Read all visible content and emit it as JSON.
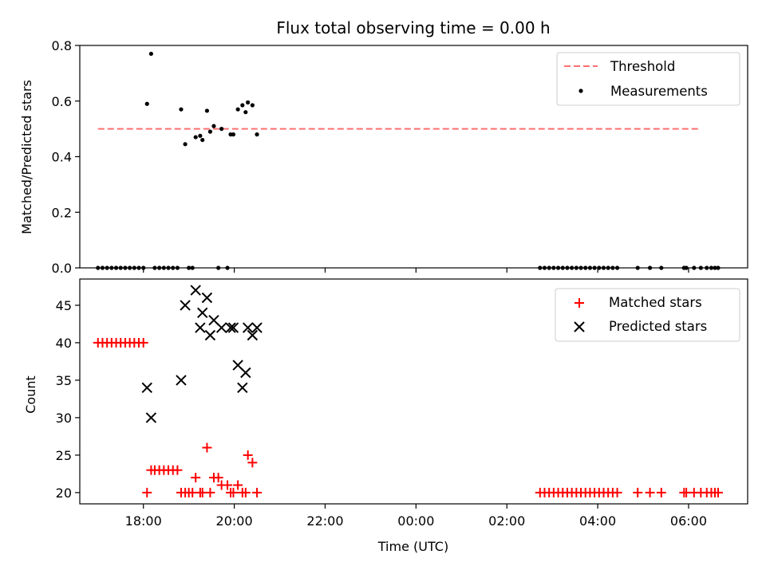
{
  "chart_data": [
    {
      "type": "scatter",
      "title": "Flux total observing time = 0.00 h",
      "ylabel": "Matched/Predicted stars",
      "ylim": [
        0,
        0.8
      ],
      "xlim": [
        16.6,
        31.3
      ],
      "yticks": [
        {
          "v": 0.0,
          "label": "0.0"
        },
        {
          "v": 0.2,
          "label": "0.2"
        },
        {
          "v": 0.4,
          "label": "0.4"
        },
        {
          "v": 0.6,
          "label": "0.6"
        },
        {
          "v": 0.8,
          "label": "0.8"
        }
      ],
      "threshold": {
        "name": "Threshold",
        "value": 0.5,
        "x": [
          17.0,
          30.25
        ],
        "color": "#ff7070"
      },
      "series": [
        {
          "name": "Measurements",
          "color": "#000000",
          "points": [
            [
              17.0,
              0
            ],
            [
              17.1,
              0
            ],
            [
              17.2,
              0
            ],
            [
              17.3,
              0
            ],
            [
              17.4,
              0
            ],
            [
              17.5,
              0
            ],
            [
              17.6,
              0
            ],
            [
              17.7,
              0
            ],
            [
              17.8,
              0
            ],
            [
              17.9,
              0
            ],
            [
              18.0,
              0
            ],
            [
              18.08,
              0.59
            ],
            [
              18.17,
              0.77
            ],
            [
              18.25,
              0
            ],
            [
              18.35,
              0
            ],
            [
              18.45,
              0
            ],
            [
              18.55,
              0
            ],
            [
              18.65,
              0
            ],
            [
              18.75,
              0
            ],
            [
              18.83,
              0.57
            ],
            [
              18.92,
              0.445
            ],
            [
              19.0,
              0
            ],
            [
              19.08,
              0
            ],
            [
              19.15,
              0.47
            ],
            [
              19.25,
              0.475
            ],
            [
              19.3,
              0.46
            ],
            [
              19.4,
              0.565
            ],
            [
              19.47,
              0.49
            ],
            [
              19.55,
              0.51
            ],
            [
              19.65,
              0
            ],
            [
              19.72,
              0.5
            ],
            [
              19.85,
              0
            ],
            [
              19.92,
              0.48
            ],
            [
              19.98,
              0.48
            ],
            [
              20.08,
              0.57
            ],
            [
              20.18,
              0.585
            ],
            [
              20.25,
              0.56
            ],
            [
              20.3,
              0.595
            ],
            [
              20.4,
              0.585
            ],
            [
              20.5,
              0.48
            ],
            [
              26.73,
              0
            ],
            [
              26.83,
              0
            ],
            [
              26.93,
              0
            ],
            [
              27.03,
              0
            ],
            [
              27.13,
              0
            ],
            [
              27.23,
              0
            ],
            [
              27.33,
              0
            ],
            [
              27.43,
              0
            ],
            [
              27.53,
              0
            ],
            [
              27.63,
              0
            ],
            [
              27.73,
              0
            ],
            [
              27.83,
              0
            ],
            [
              27.93,
              0
            ],
            [
              28.03,
              0
            ],
            [
              28.13,
              0
            ],
            [
              28.23,
              0
            ],
            [
              28.33,
              0
            ],
            [
              28.43,
              0
            ],
            [
              28.88,
              0
            ],
            [
              29.15,
              0
            ],
            [
              29.4,
              0
            ],
            [
              29.9,
              0
            ],
            [
              29.95,
              0
            ],
            [
              30.12,
              0
            ],
            [
              30.27,
              0
            ],
            [
              30.4,
              0
            ],
            [
              30.5,
              0
            ],
            [
              30.58,
              0
            ],
            [
              30.65,
              0
            ]
          ]
        }
      ],
      "legend": {
        "position": "upper right",
        "entries": [
          "Threshold",
          "Measurements"
        ]
      }
    },
    {
      "type": "scatter",
      "xlabel": "Time (UTC)",
      "ylabel": "Count",
      "ylim": [
        18.5,
        48.5
      ],
      "xlim": [
        16.6,
        31.3
      ],
      "yticks": [
        {
          "v": 20,
          "label": "20"
        },
        {
          "v": 25,
          "label": "25"
        },
        {
          "v": 30,
          "label": "30"
        },
        {
          "v": 35,
          "label": "35"
        },
        {
          "v": 40,
          "label": "40"
        },
        {
          "v": 45,
          "label": "45"
        }
      ],
      "xticks": [
        {
          "v": 18,
          "label": "18:00"
        },
        {
          "v": 20,
          "label": "20:00"
        },
        {
          "v": 22,
          "label": "22:00"
        },
        {
          "v": 24,
          "label": "00:00"
        },
        {
          "v": 26,
          "label": "02:00"
        },
        {
          "v": 28,
          "label": "04:00"
        },
        {
          "v": 30,
          "label": "06:00"
        }
      ],
      "series": [
        {
          "name": "Matched stars",
          "marker": "plus",
          "color": "#ff0000",
          "points": [
            [
              17.0,
              40
            ],
            [
              17.1,
              40
            ],
            [
              17.2,
              40
            ],
            [
              17.3,
              40
            ],
            [
              17.4,
              40
            ],
            [
              17.5,
              40
            ],
            [
              17.6,
              40
            ],
            [
              17.7,
              40
            ],
            [
              17.8,
              40
            ],
            [
              17.9,
              40
            ],
            [
              18.0,
              40
            ],
            [
              18.08,
              20
            ],
            [
              18.17,
              23
            ],
            [
              18.25,
              23
            ],
            [
              18.35,
              23
            ],
            [
              18.45,
              23
            ],
            [
              18.55,
              23
            ],
            [
              18.65,
              23
            ],
            [
              18.75,
              23
            ],
            [
              18.83,
              20
            ],
            [
              18.92,
              20
            ],
            [
              19.0,
              20
            ],
            [
              19.08,
              20
            ],
            [
              19.15,
              22
            ],
            [
              19.25,
              20
            ],
            [
              19.3,
              20
            ],
            [
              19.4,
              26
            ],
            [
              19.47,
              20
            ],
            [
              19.55,
              22
            ],
            [
              19.65,
              22
            ],
            [
              19.72,
              21
            ],
            [
              19.85,
              21
            ],
            [
              19.92,
              20
            ],
            [
              19.98,
              20
            ],
            [
              20.08,
              21
            ],
            [
              20.18,
              20
            ],
            [
              20.25,
              20
            ],
            [
              20.3,
              25
            ],
            [
              20.4,
              24
            ],
            [
              20.5,
              20
            ],
            [
              26.73,
              20
            ],
            [
              26.83,
              20
            ],
            [
              26.93,
              20
            ],
            [
              27.03,
              20
            ],
            [
              27.13,
              20
            ],
            [
              27.23,
              20
            ],
            [
              27.33,
              20
            ],
            [
              27.43,
              20
            ],
            [
              27.53,
              20
            ],
            [
              27.63,
              20
            ],
            [
              27.73,
              20
            ],
            [
              27.83,
              20
            ],
            [
              27.93,
              20
            ],
            [
              28.03,
              20
            ],
            [
              28.13,
              20
            ],
            [
              28.23,
              20
            ],
            [
              28.33,
              20
            ],
            [
              28.43,
              20
            ],
            [
              28.88,
              20
            ],
            [
              29.15,
              20
            ],
            [
              29.4,
              20
            ],
            [
              29.9,
              20
            ],
            [
              29.95,
              20
            ],
            [
              30.12,
              20
            ],
            [
              30.27,
              20
            ],
            [
              30.4,
              20
            ],
            [
              30.5,
              20
            ],
            [
              30.58,
              20
            ],
            [
              30.65,
              20
            ]
          ]
        },
        {
          "name": "Predicted stars",
          "marker": "x",
          "color": "#000000",
          "points": [
            [
              18.08,
              34
            ],
            [
              18.17,
              30
            ],
            [
              18.83,
              35
            ],
            [
              18.92,
              45
            ],
            [
              19.15,
              47
            ],
            [
              19.25,
              42
            ],
            [
              19.3,
              44
            ],
            [
              19.4,
              46
            ],
            [
              19.47,
              41
            ],
            [
              19.55,
              43
            ],
            [
              19.72,
              42
            ],
            [
              19.92,
              42
            ],
            [
              19.98,
              42
            ],
            [
              20.08,
              37
            ],
            [
              20.18,
              34
            ],
            [
              20.25,
              36
            ],
            [
              20.3,
              42
            ],
            [
              20.4,
              41
            ],
            [
              20.5,
              42
            ]
          ]
        }
      ],
      "legend": {
        "position": "upper right",
        "entries": [
          "Matched stars",
          "Predicted stars"
        ]
      }
    }
  ]
}
